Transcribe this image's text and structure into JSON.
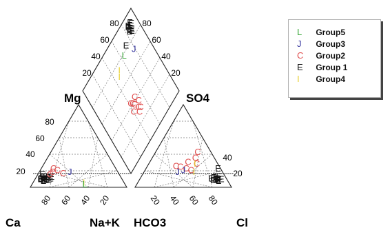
{
  "chart_data": {
    "type": "scatter",
    "title": "",
    "subtype": "piper-diagram",
    "axes": {
      "cation_corner_labels": [
        "Ca",
        "Na+K"
      ],
      "mg_label": "Mg",
      "anion_corner_labels": [
        "HCO3",
        "Cl"
      ],
      "so4_label": "SO4",
      "cation_tick_labels": [
        "80",
        "60",
        "40",
        "20"
      ],
      "anion_tick_labels": [
        "20",
        "40",
        "60",
        "80"
      ],
      "left_tri_y_ticks": [
        "80",
        "60",
        "40",
        "20"
      ],
      "right_tri_y_ticks": [
        "40",
        "20"
      ],
      "diamond_left_ticks": [
        "80",
        "60",
        "40",
        "20"
      ],
      "diamond_right_ticks": [
        "80",
        "60",
        "40",
        "20"
      ],
      "grid": true
    },
    "legend": {
      "placement": "top-right",
      "entries": [
        {
          "symbol": "L",
          "name": "Group5",
          "color": "#3aa83a"
        },
        {
          "symbol": "J",
          "name": "Group3",
          "color": "#3a3aa0"
        },
        {
          "symbol": "C",
          "name": "Group2",
          "color": "#e05050"
        },
        {
          "symbol": "E",
          "name": "Group 1",
          "color": "#111111"
        },
        {
          "symbol": "I",
          "name": "Group4",
          "color": "#e8d030"
        }
      ]
    },
    "series": [
      {
        "name": "Group 1",
        "cation": [
          [
            80,
            10
          ],
          [
            82,
            8
          ],
          [
            78,
            12
          ],
          [
            85,
            9
          ],
          [
            76,
            11
          ],
          [
            83,
            7
          ],
          [
            79,
            9
          ],
          [
            81,
            12
          ],
          [
            77,
            8
          ],
          [
            74,
            10
          ],
          [
            84,
            10
          ],
          [
            80,
            15
          ],
          [
            72,
            12
          ]
        ],
        "anion": [
          [
            80,
            10
          ],
          [
            82,
            8
          ],
          [
            78,
            12
          ],
          [
            85,
            9
          ],
          [
            76,
            11
          ],
          [
            83,
            7
          ],
          [
            79,
            9
          ],
          [
            81,
            12
          ],
          [
            77,
            8
          ],
          [
            75,
            22
          ],
          [
            74,
            10
          ]
        ],
        "diamond": [
          [
            88,
            10
          ],
          [
            86,
            12
          ],
          [
            90,
            8
          ],
          [
            87,
            15
          ],
          [
            85,
            9
          ],
          [
            89,
            11
          ],
          [
            84,
            13
          ],
          [
            91,
            10
          ],
          [
            86,
            8
          ],
          [
            88,
            14
          ],
          [
            85,
            12
          ],
          [
            72,
            18
          ]
        ]
      },
      {
        "name": "Group2",
        "cation": [
          [
            68,
            18
          ],
          [
            62,
            20
          ],
          [
            58,
            16
          ],
          [
            72,
            15
          ],
          [
            65,
            22
          ]
        ],
        "anion": [
          [
            40,
            30
          ],
          [
            30,
            25
          ],
          [
            50,
            28
          ],
          [
            48,
            20
          ],
          [
            35,
            24
          ],
          [
            42,
            22
          ],
          [
            45,
            35
          ],
          [
            44,
            42
          ]
        ],
        "diamond": [
          [
            50,
            70
          ],
          [
            48,
            68
          ],
          [
            46,
            72
          ],
          [
            52,
            64
          ],
          [
            44,
            60
          ],
          [
            40,
            66
          ],
          [
            42,
            58
          ],
          [
            45,
            62
          ],
          [
            50,
            58
          ]
        ]
      },
      {
        "name": "Group3",
        "cation": [
          [
            50,
            18
          ]
        ],
        "anion": [
          [
            35,
            18
          ],
          [
            40,
            20
          ]
        ],
        "diamond": [
          [
            78,
            28
          ]
        ]
      },
      {
        "name": "Group4",
        "cation": [
          [
            42,
            5
          ]
        ],
        "anion": [
          [
            52,
            18
          ],
          [
            48,
            28
          ]
        ],
        "diamond": [
          [
            46,
            30
          ],
          [
            50,
            26
          ]
        ]
      },
      {
        "name": "Group5",
        "cation": [
          [
            42,
            3
          ]
        ],
        "anion": [],
        "diamond": [
          [
            64,
            22
          ]
        ]
      }
    ]
  }
}
